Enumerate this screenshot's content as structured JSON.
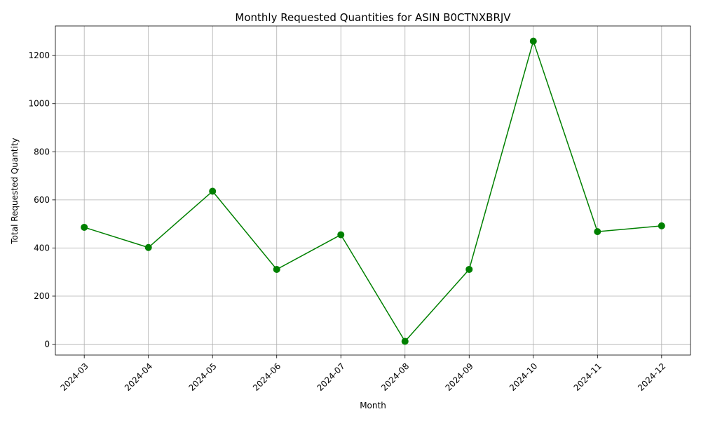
{
  "chart_data": {
    "type": "line",
    "title": "Monthly Requested Quantities for ASIN B0CTNXBRJV",
    "xlabel": "Month",
    "ylabel": "Total Requested Quantity",
    "categories": [
      "2024-03",
      "2024-04",
      "2024-05",
      "2024-06",
      "2024-07",
      "2024-08",
      "2024-09",
      "2024-10",
      "2024-11",
      "2024-12"
    ],
    "series": [
      {
        "values": [
          486,
          402,
          636,
          311,
          455,
          12,
          311,
          1260,
          468,
          492
        ],
        "color": "#008000",
        "marker": "circle"
      }
    ],
    "ylim": [
      -45,
      1323
    ],
    "yticks": [
      0,
      200,
      400,
      600,
      800,
      1000,
      1200
    ],
    "grid": true,
    "x_tick_rotation": 45
  }
}
